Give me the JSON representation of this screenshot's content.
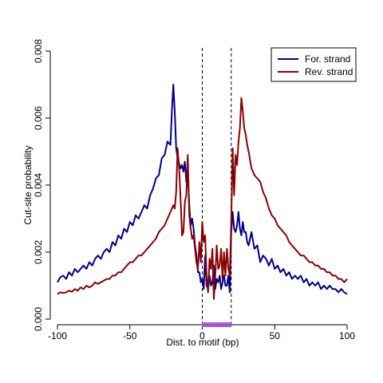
{
  "chart_data": {
    "type": "line",
    "xlabel": "Dist. to motif (bp)",
    "ylabel": "Cut-site probability",
    "xlim": [
      -100,
      100
    ],
    "ylim": [
      0,
      0.008
    ],
    "x_ticks": [
      -100,
      -50,
      0,
      50,
      100
    ],
    "y_ticks": [
      0,
      0.002,
      0.004,
      0.006,
      0.008
    ],
    "x_tick_labels": [
      "-100",
      "-50",
      "0",
      "50",
      "100"
    ],
    "y_tick_labels": [
      "0.000",
      "0.002",
      "0.004",
      "0.006",
      "0.008"
    ],
    "grid": false,
    "legend_position": "top-right",
    "vlines": [
      0,
      20
    ],
    "motif_marker": {
      "from": 0,
      "to": 20,
      "color": "#9b59d0"
    },
    "series": [
      {
        "name": "For. strand",
        "color": "#00008b",
        "points": [
          [
            -100,
            0.0011
          ],
          [
            -98,
            0.00125
          ],
          [
            -96,
            0.0013
          ],
          [
            -94,
            0.0012
          ],
          [
            -92,
            0.0014
          ],
          [
            -90,
            0.0013
          ],
          [
            -88,
            0.0015
          ],
          [
            -86,
            0.0014
          ],
          [
            -84,
            0.0015
          ],
          [
            -82,
            0.0016
          ],
          [
            -80,
            0.0015
          ],
          [
            -78,
            0.0017
          ],
          [
            -76,
            0.0016
          ],
          [
            -74,
            0.0018
          ],
          [
            -72,
            0.0019
          ],
          [
            -70,
            0.0018
          ],
          [
            -68,
            0.002
          ],
          [
            -66,
            0.0021
          ],
          [
            -64,
            0.002
          ],
          [
            -62,
            0.0023
          ],
          [
            -60,
            0.0022
          ],
          [
            -58,
            0.0025
          ],
          [
            -56,
            0.0024
          ],
          [
            -54,
            0.0027
          ],
          [
            -52,
            0.0026
          ],
          [
            -50,
            0.0029
          ],
          [
            -48,
            0.0028
          ],
          [
            -46,
            0.0031
          ],
          [
            -44,
            0.003
          ],
          [
            -42,
            0.0032
          ],
          [
            -40,
            0.0034
          ],
          [
            -38,
            0.0033
          ],
          [
            -36,
            0.0037
          ],
          [
            -34,
            0.0039
          ],
          [
            -32,
            0.0042
          ],
          [
            -30,
            0.0043
          ],
          [
            -28,
            0.0048
          ],
          [
            -26,
            0.0049
          ],
          [
            -24,
            0.0053
          ],
          [
            -22,
            0.0052
          ],
          [
            -21,
            0.0062
          ],
          [
            -20,
            0.007
          ],
          [
            -19,
            0.0062
          ],
          [
            -18,
            0.0051
          ],
          [
            -17,
            0.0048
          ],
          [
            -15,
            0.0045
          ],
          [
            -14,
            0.0046
          ],
          [
            -13,
            0.0044
          ],
          [
            -12,
            0.0047
          ],
          [
            -11,
            0.0041
          ],
          [
            -10,
            0.0044
          ],
          [
            -9,
            0.0034
          ],
          [
            -8,
            0.0028
          ],
          [
            -7,
            0.003
          ],
          [
            -6,
            0.0027
          ],
          [
            -5,
            0.0022
          ],
          [
            -4,
            0.0019
          ],
          [
            -3,
            0.0014
          ],
          [
            -2,
            0.0014
          ],
          [
            -1,
            0.0011
          ],
          [
            0,
            0.0012
          ],
          [
            1,
            0.0009
          ],
          [
            2,
            0.0019
          ],
          [
            3,
            0.001
          ],
          [
            4,
            0.0009
          ],
          [
            5,
            0.0013
          ],
          [
            6,
            0.001
          ],
          [
            7,
            0.0011
          ],
          [
            8,
            0.0016
          ],
          [
            9,
            0.0009
          ],
          [
            10,
            0.0012
          ],
          [
            11,
            0.0011
          ],
          [
            12,
            0.0013
          ],
          [
            13,
            0.0009
          ],
          [
            14,
            0.0011
          ],
          [
            15,
            0.0013
          ],
          [
            16,
            0.001
          ],
          [
            17,
            0.001
          ],
          [
            18,
            0.0013
          ],
          [
            19,
            0.0008
          ],
          [
            20,
            0.0026
          ],
          [
            21,
            0.0032
          ],
          [
            22,
            0.0027
          ],
          [
            23,
            0.0026
          ],
          [
            24,
            0.0028
          ],
          [
            25,
            0.0032
          ],
          [
            26,
            0.0027
          ],
          [
            27,
            0.0025
          ],
          [
            28,
            0.0029
          ],
          [
            29,
            0.0026
          ],
          [
            30,
            0.0026
          ],
          [
            31,
            0.0023
          ],
          [
            32,
            0.0022
          ],
          [
            34,
            0.0026
          ],
          [
            36,
            0.0021
          ],
          [
            38,
            0.0022
          ],
          [
            40,
            0.0017
          ],
          [
            42,
            0.0019
          ],
          [
            44,
            0.0018
          ],
          [
            46,
            0.0016
          ],
          [
            48,
            0.0018
          ],
          [
            50,
            0.0015
          ],
          [
            52,
            0.0016
          ],
          [
            54,
            0.0014
          ],
          [
            56,
            0.0015
          ],
          [
            58,
            0.0013
          ],
          [
            60,
            0.0014
          ],
          [
            62,
            0.0012
          ],
          [
            64,
            0.0013
          ],
          [
            66,
            0.0012
          ],
          [
            68,
            0.0013
          ],
          [
            70,
            0.0011
          ],
          [
            72,
            0.0012
          ],
          [
            74,
            0.001
          ],
          [
            76,
            0.0011
          ],
          [
            78,
            0.001
          ],
          [
            80,
            0.0011
          ],
          [
            82,
            0.0009
          ],
          [
            84,
            0.001
          ],
          [
            86,
            0.0009
          ],
          [
            88,
            0.001
          ],
          [
            90,
            0.0009
          ],
          [
            92,
            0.0009
          ],
          [
            94,
            0.0008
          ],
          [
            96,
            0.0009
          ],
          [
            98,
            0.0008
          ],
          [
            100,
            0.00075
          ]
        ]
      },
      {
        "name": "Rev. strand",
        "color": "#8b0000",
        "points": [
          [
            -100,
            0.00075
          ],
          [
            -98,
            0.0008
          ],
          [
            -96,
            0.00078
          ],
          [
            -94,
            0.0008
          ],
          [
            -92,
            0.00085
          ],
          [
            -90,
            0.00082
          ],
          [
            -88,
            0.0009
          ],
          [
            -86,
            0.00085
          ],
          [
            -84,
            0.00095
          ],
          [
            -82,
            0.0009
          ],
          [
            -80,
            0.001
          ],
          [
            -78,
            0.00095
          ],
          [
            -76,
            0.001
          ],
          [
            -74,
            0.0011
          ],
          [
            -72,
            0.00105
          ],
          [
            -70,
            0.0011
          ],
          [
            -68,
            0.00115
          ],
          [
            -66,
            0.0012
          ],
          [
            -64,
            0.0012
          ],
          [
            -62,
            0.0013
          ],
          [
            -60,
            0.0013
          ],
          [
            -58,
            0.0014
          ],
          [
            -56,
            0.0014
          ],
          [
            -54,
            0.0015
          ],
          [
            -52,
            0.0016
          ],
          [
            -50,
            0.0017
          ],
          [
            -48,
            0.0017
          ],
          [
            -46,
            0.0018
          ],
          [
            -44,
            0.0019
          ],
          [
            -42,
            0.0019
          ],
          [
            -40,
            0.002
          ],
          [
            -38,
            0.0021
          ],
          [
            -36,
            0.0022
          ],
          [
            -34,
            0.0023
          ],
          [
            -32,
            0.0024
          ],
          [
            -30,
            0.0026
          ],
          [
            -28,
            0.0027
          ],
          [
            -26,
            0.0028
          ],
          [
            -24,
            0.003
          ],
          [
            -22,
            0.0032
          ],
          [
            -21,
            0.0033
          ],
          [
            -20,
            0.0034
          ],
          [
            -19,
            0.0033
          ],
          [
            -18,
            0.0038
          ],
          [
            -17,
            0.0051
          ],
          [
            -16,
            0.0045
          ],
          [
            -15,
            0.0036
          ],
          [
            -14,
            0.0025
          ],
          [
            -13,
            0.0026
          ],
          [
            -12,
            0.0035
          ],
          [
            -11,
            0.0037
          ],
          [
            -10,
            0.0049
          ],
          [
            -9,
            0.0031
          ],
          [
            -8,
            0.0027
          ],
          [
            -7,
            0.0024
          ],
          [
            -6,
            0.0025
          ],
          [
            -5,
            0.0021
          ],
          [
            -4,
            0.0017
          ],
          [
            -3,
            0.0015
          ],
          [
            -2,
            0.0023
          ],
          [
            -1,
            0.0017
          ],
          [
            0,
            0.0029
          ],
          [
            1,
            0.0023
          ],
          [
            2,
            0.0025
          ],
          [
            3,
            0.0013
          ],
          [
            4,
            0.0008
          ],
          [
            5,
            0.0018
          ],
          [
            6,
            0.0015
          ],
          [
            7,
            0.0021
          ],
          [
            8,
            0.0006
          ],
          [
            9,
            0.0013
          ],
          [
            10,
            0.0022
          ],
          [
            11,
            0.0015
          ],
          [
            12,
            0.0016
          ],
          [
            13,
            0.0021
          ],
          [
            14,
            0.0012
          ],
          [
            15,
            0.002
          ],
          [
            16,
            0.0013
          ],
          [
            17,
            0.0021
          ],
          [
            18,
            0.0015
          ],
          [
            19,
            0.0013
          ],
          [
            20,
            0.0029
          ],
          [
            21,
            0.0051
          ],
          [
            22,
            0.0037
          ],
          [
            23,
            0.0049
          ],
          [
            24,
            0.0046
          ],
          [
            25,
            0.0053
          ],
          [
            26,
            0.0057
          ],
          [
            27,
            0.0066
          ],
          [
            28,
            0.0062
          ],
          [
            29,
            0.0057
          ],
          [
            30,
            0.0055
          ],
          [
            31,
            0.0052
          ],
          [
            32,
            0.005
          ],
          [
            34,
            0.0045
          ],
          [
            36,
            0.0043
          ],
          [
            38,
            0.0042
          ],
          [
            40,
            0.0041
          ],
          [
            42,
            0.0038
          ],
          [
            44,
            0.0036
          ],
          [
            46,
            0.0033
          ],
          [
            48,
            0.0031
          ],
          [
            50,
            0.003
          ],
          [
            52,
            0.0028
          ],
          [
            54,
            0.0027
          ],
          [
            56,
            0.0026
          ],
          [
            58,
            0.0025
          ],
          [
            60,
            0.0023
          ],
          [
            62,
            0.0022
          ],
          [
            64,
            0.0021
          ],
          [
            66,
            0.002
          ],
          [
            68,
            0.0019
          ],
          [
            70,
            0.0019
          ],
          [
            72,
            0.0018
          ],
          [
            74,
            0.0017
          ],
          [
            76,
            0.0017
          ],
          [
            78,
            0.0016
          ],
          [
            80,
            0.0016
          ],
          [
            82,
            0.0015
          ],
          [
            84,
            0.0015
          ],
          [
            86,
            0.0014
          ],
          [
            88,
            0.0014
          ],
          [
            90,
            0.0013
          ],
          [
            92,
            0.0013
          ],
          [
            94,
            0.0012
          ],
          [
            96,
            0.0012
          ],
          [
            98,
            0.0011
          ],
          [
            100,
            0.0012
          ]
        ]
      }
    ]
  }
}
